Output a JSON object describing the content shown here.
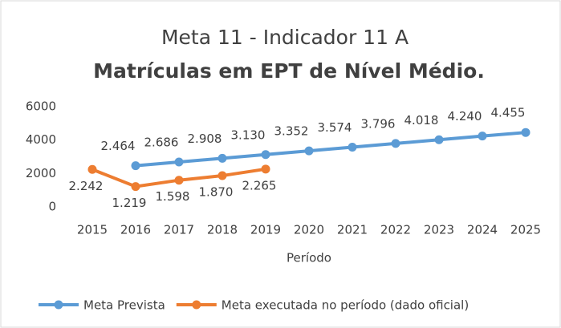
{
  "chart_data": {
    "type": "line",
    "title": "Meta 11 - Indicador 11 A",
    "subtitle": "Matrículas em EPT de Nível Médio.",
    "x_label": "Período",
    "categories": [
      "2015",
      "2016",
      "2017",
      "2018",
      "2019",
      "2020",
      "2021",
      "2022",
      "2023",
      "2024",
      "2025"
    ],
    "series": [
      {
        "name": "Meta Prevista",
        "color": "#5b9bd5",
        "values": [
          null,
          2464,
          2686,
          2908,
          3130,
          3352,
          3574,
          3796,
          4018,
          4240,
          4455
        ],
        "value_labels": [
          null,
          "2.464",
          "2.686",
          "2.908",
          "3.130",
          "3.352",
          "3.574",
          "3.796",
          "4.018",
          "4.240",
          "4.455"
        ]
      },
      {
        "name": "Meta executada no período (dado oficial)",
        "color": "#ed7d31",
        "values": [
          2242,
          1219,
          1598,
          1870,
          2265,
          null,
          null,
          null,
          null,
          null,
          null
        ],
        "value_labels": [
          "2.242",
          "1.219",
          "1.598",
          "1.870",
          "2.265",
          null,
          null,
          null,
          null,
          null,
          null
        ]
      }
    ],
    "ylim": [
      0,
      6000
    ],
    "yticks": [
      0,
      2000,
      4000,
      6000
    ],
    "grid": false,
    "legend": "bottom"
  }
}
